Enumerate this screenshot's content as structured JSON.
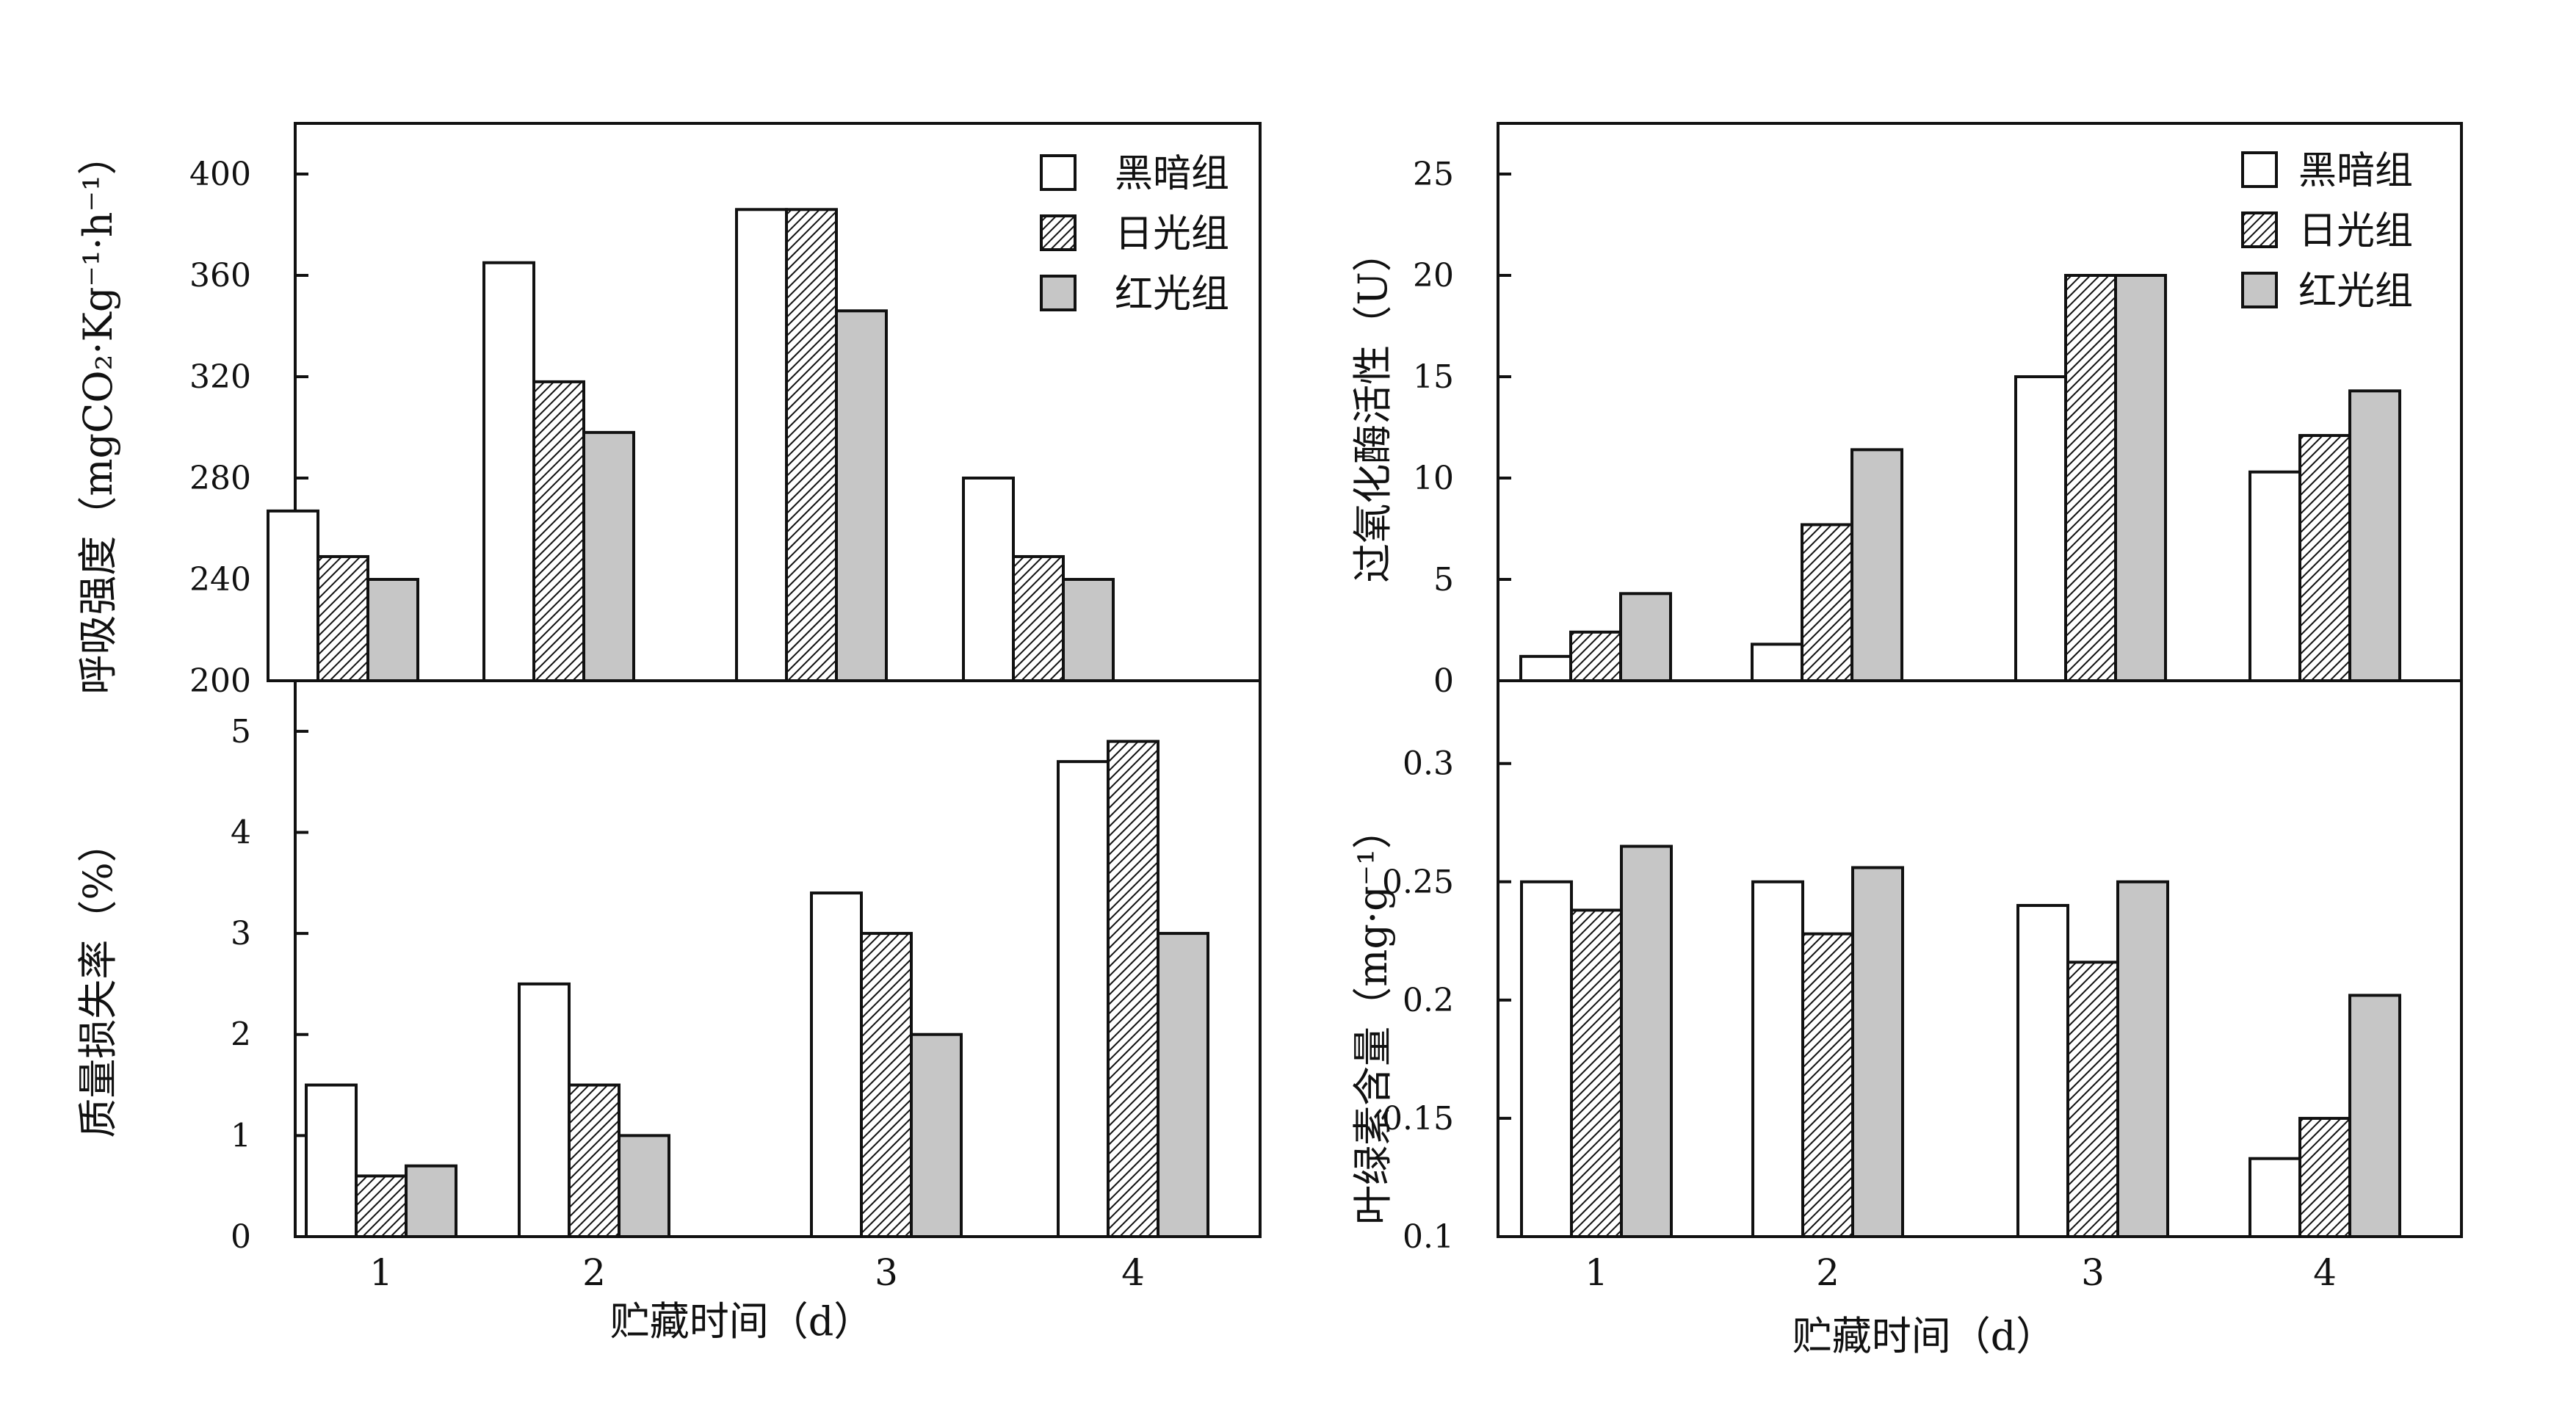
{
  "legend": {
    "items": [
      "黑暗组",
      "日光组",
      "红光组"
    ]
  },
  "colors": {
    "dark_fill": "#ffffff",
    "red_fill": "#c6c6c6",
    "stroke": "#111111",
    "hatch": "#111111"
  },
  "chart_data": [
    {
      "type": "bar",
      "id": "respiration",
      "categories": [
        "1",
        "2",
        "3",
        "4"
      ],
      "series": [
        {
          "name": "黑暗组",
          "values": [
            267,
            365,
            386,
            280
          ]
        },
        {
          "name": "日光组",
          "values": [
            249,
            318,
            386,
            249
          ]
        },
        {
          "name": "红光组",
          "values": [
            240,
            298,
            346,
            240
          ]
        }
      ],
      "ylabel": "呼吸强度（mgCO₂·Kg⁻¹·h⁻¹）",
      "ylim": [
        200,
        420
      ],
      "yticks": [
        200,
        240,
        280,
        320,
        360,
        400
      ],
      "ytick_labels": [
        "200",
        "240",
        "280",
        "320",
        "360",
        "400"
      ],
      "legend_position": "top-right"
    },
    {
      "type": "bar",
      "id": "catalase",
      "categories": [
        "1",
        "2",
        "3",
        "4"
      ],
      "series": [
        {
          "name": "黑暗组",
          "values": [
            1.2,
            1.8,
            15,
            10.3
          ]
        },
        {
          "name": "日光组",
          "values": [
            2.4,
            7.7,
            20,
            12.1
          ]
        },
        {
          "name": "红光组",
          "values": [
            4.3,
            11.4,
            20,
            14.3
          ]
        }
      ],
      "ylabel": "过氧化酶活性（U）",
      "ylim": [
        0,
        27.5
      ],
      "yticks": [
        0,
        5,
        10,
        15,
        20,
        25
      ],
      "ytick_labels": [
        "0",
        "5",
        "10",
        "15",
        "20",
        "25"
      ],
      "legend_position": "top-right"
    },
    {
      "type": "bar",
      "id": "mass_loss",
      "categories": [
        "1",
        "2",
        "3",
        "4"
      ],
      "series": [
        {
          "name": "黑暗组",
          "values": [
            1.5,
            2.5,
            3.4,
            4.7
          ]
        },
        {
          "name": "日光组",
          "values": [
            0.6,
            1.5,
            3.0,
            4.9
          ]
        },
        {
          "name": "红光组",
          "values": [
            0.7,
            1.0,
            2.0,
            3.0
          ]
        }
      ],
      "xlabel": "贮藏时间（d）",
      "ylabel": "质量损失率（%）",
      "ylim": [
        0,
        5.5
      ],
      "yticks": [
        0,
        1,
        2,
        3,
        4,
        5
      ],
      "ytick_labels": [
        "0",
        "1",
        "2",
        "3",
        "4",
        "5"
      ]
    },
    {
      "type": "bar",
      "id": "chlorophyll",
      "categories": [
        "1",
        "2",
        "3",
        "4"
      ],
      "series": [
        {
          "name": "黑暗组",
          "values": [
            0.25,
            0.25,
            0.24,
            0.133
          ]
        },
        {
          "name": "日光组",
          "values": [
            0.238,
            0.228,
            0.216,
            0.15
          ]
        },
        {
          "name": "红光组",
          "values": [
            0.265,
            0.256,
            0.25,
            0.202
          ]
        }
      ],
      "xlabel": "贮藏时间（d）",
      "ylabel": "叶绿素含量（mg·g⁻¹）",
      "ylim": [
        0.1,
        0.335
      ],
      "yticks": [
        0.1,
        0.15,
        0.2,
        0.25,
        0.3
      ],
      "ytick_labels": [
        "0.1",
        "0.15",
        "0.2",
        "0.25",
        "0.3"
      ]
    }
  ]
}
